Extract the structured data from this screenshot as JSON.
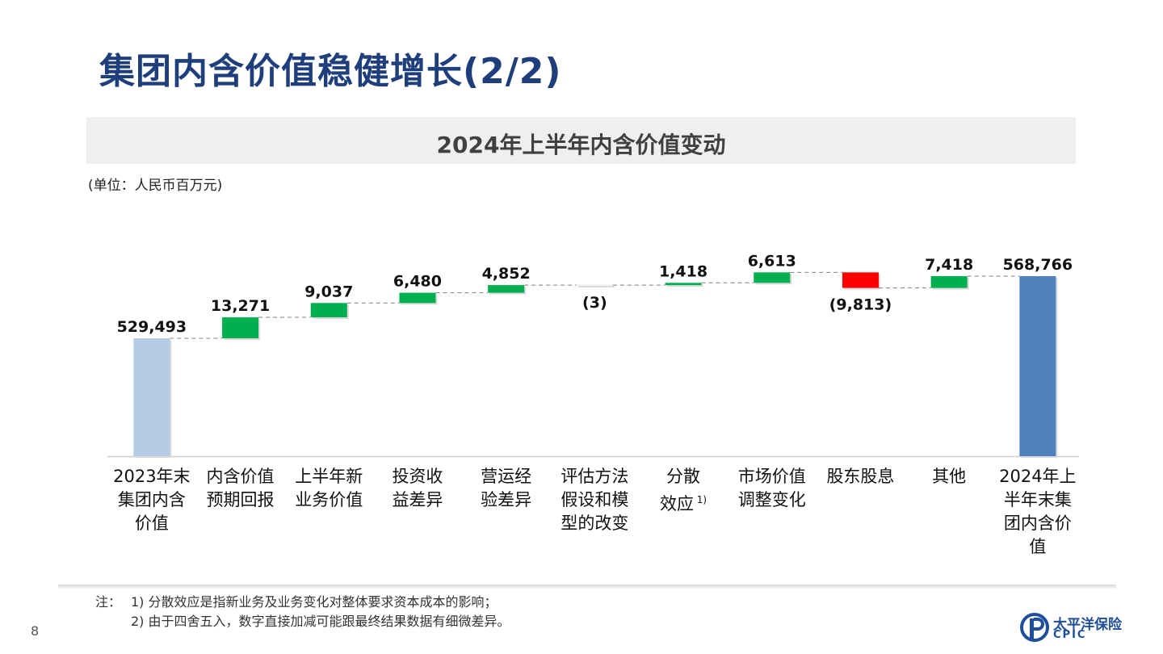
{
  "header": {
    "title": "集团内含价值稳健增长(2/2)",
    "subtitle": "2024年上半年内含价值变动",
    "unit": "(单位：人民币百万元)"
  },
  "chart_data": {
    "type": "waterfall",
    "title": "2024年上半年内含价值变动",
    "unit": "人民币百万元",
    "steps": [
      {
        "category": "2023年末集团内含价值",
        "value": 529493,
        "label": "529,493",
        "kind": "total"
      },
      {
        "category": "内含价值预期回报",
        "value": 13271,
        "label": "13,271",
        "kind": "delta"
      },
      {
        "category": "上半年新业务价值",
        "value": 9037,
        "label": "9,037",
        "kind": "delta"
      },
      {
        "category": "投资收益差异",
        "value": 6480,
        "label": "6,480",
        "kind": "delta"
      },
      {
        "category": "营运经验差异",
        "value": 4852,
        "label": "4,852",
        "kind": "delta"
      },
      {
        "category": "评估方法假设和模型的改变",
        "value": -3,
        "label": "(3)",
        "kind": "delta"
      },
      {
        "category": "分散效应",
        "value": 1418,
        "label": "1,418",
        "kind": "delta"
      },
      {
        "category": "市场价值调整变化",
        "value": 6613,
        "label": "6,613",
        "kind": "delta"
      },
      {
        "category": "股东股息",
        "value": -9813,
        "label": "(9,813)",
        "kind": "delta"
      },
      {
        "category": "其他",
        "value": 7418,
        "label": "7,418",
        "kind": "delta"
      },
      {
        "category": "2024年上半年末集团内含价值",
        "value": 568766,
        "label": "568,766",
        "kind": "total"
      }
    ],
    "colors": {
      "start_total": "#b7cbe6",
      "end_total": "#4f81bd",
      "increase": "#00b050",
      "decrease": "#ff0000"
    }
  },
  "category_labels": [
    [
      "2023年末",
      "集团内含",
      "价值"
    ],
    [
      "内含价值",
      "预期回报"
    ],
    [
      "上半年新",
      "业务价值"
    ],
    [
      "投资收",
      "益差异"
    ],
    [
      "营运经",
      "验差异"
    ],
    [
      "评估方法",
      "假设和模",
      "型的改变"
    ],
    [
      "分散",
      "效应"
    ],
    [
      "市场价值",
      "调整变化"
    ],
    [
      "股东股息"
    ],
    [
      "其他"
    ],
    [
      "2024年上",
      "半年末集",
      "团内含价",
      "值"
    ]
  ],
  "category_footnote_marks": {
    "6": "1)"
  },
  "footnotes": {
    "prefix": "注：",
    "note1": "1) 分散效应是指新业务及业务变化对整体要求资本成本的影响；",
    "note2": "2) 由于四舍五入，数字直接加减可能跟最终结果数据有细微差异。"
  },
  "page_number": "8",
  "logo": {
    "name_cn": "太平洋保险",
    "name_en": "CPIC"
  }
}
